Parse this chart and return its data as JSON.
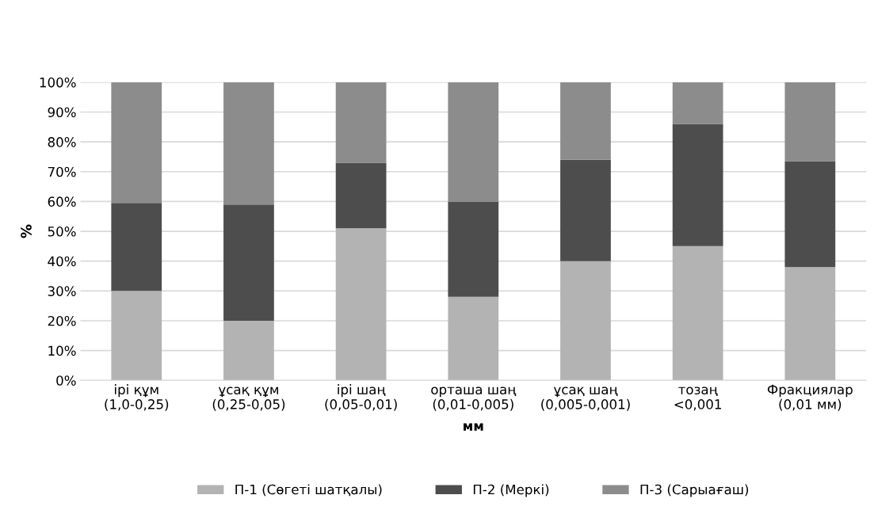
{
  "chart_data": {
    "type": "bar",
    "stacked": true,
    "xlabel": "мм",
    "ylabel": "%",
    "categories": [
      "ірі құм\n(1,0-0,25)",
      "ұсақ құм\n(0,25-0,05)",
      "ірі шаң\n(0,05-0,01)",
      "орташа шаң\n(0,01-0,005)",
      "ұсақ шаң\n(0,005-0,001)",
      "тозаң\n<0,001",
      "Фракциялар\n(0,01 мм)"
    ],
    "series": [
      {
        "name": "П-1 (Сөгеті шатқалы)",
        "color": "#b3b3b3",
        "values": [
          30,
          20,
          51,
          28,
          40,
          45,
          38
        ]
      },
      {
        "name": "П-2 (Меркі)",
        "color": "#4d4d4d",
        "values": [
          29.5,
          39,
          22,
          32,
          34,
          41,
          35.5
        ]
      },
      {
        "name": "П-3 (Сарыағаш)",
        "color": "#8c8c8c",
        "values": [
          40.5,
          41,
          27,
          40,
          26,
          14,
          26.5
        ]
      }
    ],
    "ylim": [
      0,
      100
    ],
    "yticks": [
      {
        "value": 0,
        "label": "0%"
      },
      {
        "value": 10,
        "label": "10%"
      },
      {
        "value": 20,
        "label": "20%"
      },
      {
        "value": 30,
        "label": "30%"
      },
      {
        "value": 40,
        "label": "40%"
      },
      {
        "value": 50,
        "label": "50%"
      },
      {
        "value": 60,
        "label": "60%"
      },
      {
        "value": 70,
        "label": "70%"
      },
      {
        "value": 80,
        "label": "80%"
      },
      {
        "value": 90,
        "label": "90%"
      },
      {
        "value": 100,
        "label": "100%"
      }
    ],
    "grid": "y",
    "legend": "bottom"
  }
}
